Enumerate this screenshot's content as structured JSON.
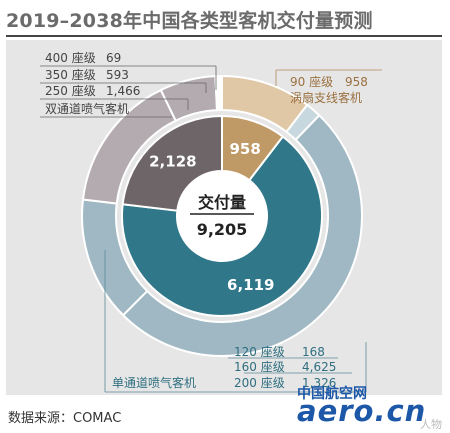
{
  "title": "2019–2038年中国各类型客机交付量预测",
  "source": "数据来源：COMAC",
  "watermark": {
    "cn": "中国航空网",
    "en": "aero.cn",
    "person": "人物"
  },
  "colors": {
    "single_aisle_inner": "#2f7789",
    "single_aisle_outer": "#9fb8c3",
    "regional_inner": "#c09a66",
    "regional_outer": "#e0c7a5",
    "twin_aisle_inner": "#6e6569",
    "twin_aisle_outer": "#b3abb0",
    "panel_bg": "#e6e6e6"
  },
  "chart_data": {
    "type": "pie",
    "title": "2019–2038年中国各类型客机交付量预测",
    "center": {
      "label": "交付量",
      "value": "9,205",
      "value_number": 9205
    },
    "inner_ring": [
      {
        "name": "涡扇支线客机",
        "value": 958,
        "label": "958"
      },
      {
        "name": "单通道喷气客机",
        "value": 6119,
        "label": "6,119"
      },
      {
        "name": "双通道喷气客机",
        "value": 2128,
        "label": "2,128"
      }
    ],
    "outer_ring": [
      {
        "group": "涡扇支线客机",
        "name": "90 座级",
        "value": 958,
        "label": "958"
      },
      {
        "group": "单通道喷气客机",
        "name": "120 座级",
        "value": 168,
        "label": "168"
      },
      {
        "group": "单通道喷气客机",
        "name": "160 座级",
        "value": 4625,
        "label": "4,625"
      },
      {
        "group": "单通道喷气客机",
        "name": "200 座级",
        "value": 1326,
        "label": "1,326"
      },
      {
        "group": "双通道喷气客机",
        "name": "250 座级",
        "value": 1466,
        "label": "1,466"
      },
      {
        "group": "双通道喷气客机",
        "name": "350 座级",
        "value": 593,
        "label": "593"
      },
      {
        "group": "双通道喷气客机",
        "name": "400 座级",
        "value": 69,
        "label": "69"
      }
    ],
    "callouts": {
      "twin_aisle": {
        "group_name": "双通道喷气客机",
        "rows": [
          {
            "seat": "400 座级",
            "value": "69"
          },
          {
            "seat": "350 座级",
            "value": "593"
          },
          {
            "seat": "250 座级",
            "value": "1,466"
          }
        ]
      },
      "regional": {
        "group_name": "涡扇支线客机",
        "rows": [
          {
            "seat": "90 座级",
            "value": "958"
          }
        ]
      },
      "single_aisle": {
        "group_name": "单通道喷气客机",
        "rows": [
          {
            "seat": "120 座级",
            "value": "168"
          },
          {
            "seat": "160 座级",
            "value": "4,625"
          },
          {
            "seat": "200 座级",
            "value": "1,326"
          }
        ]
      }
    }
  }
}
